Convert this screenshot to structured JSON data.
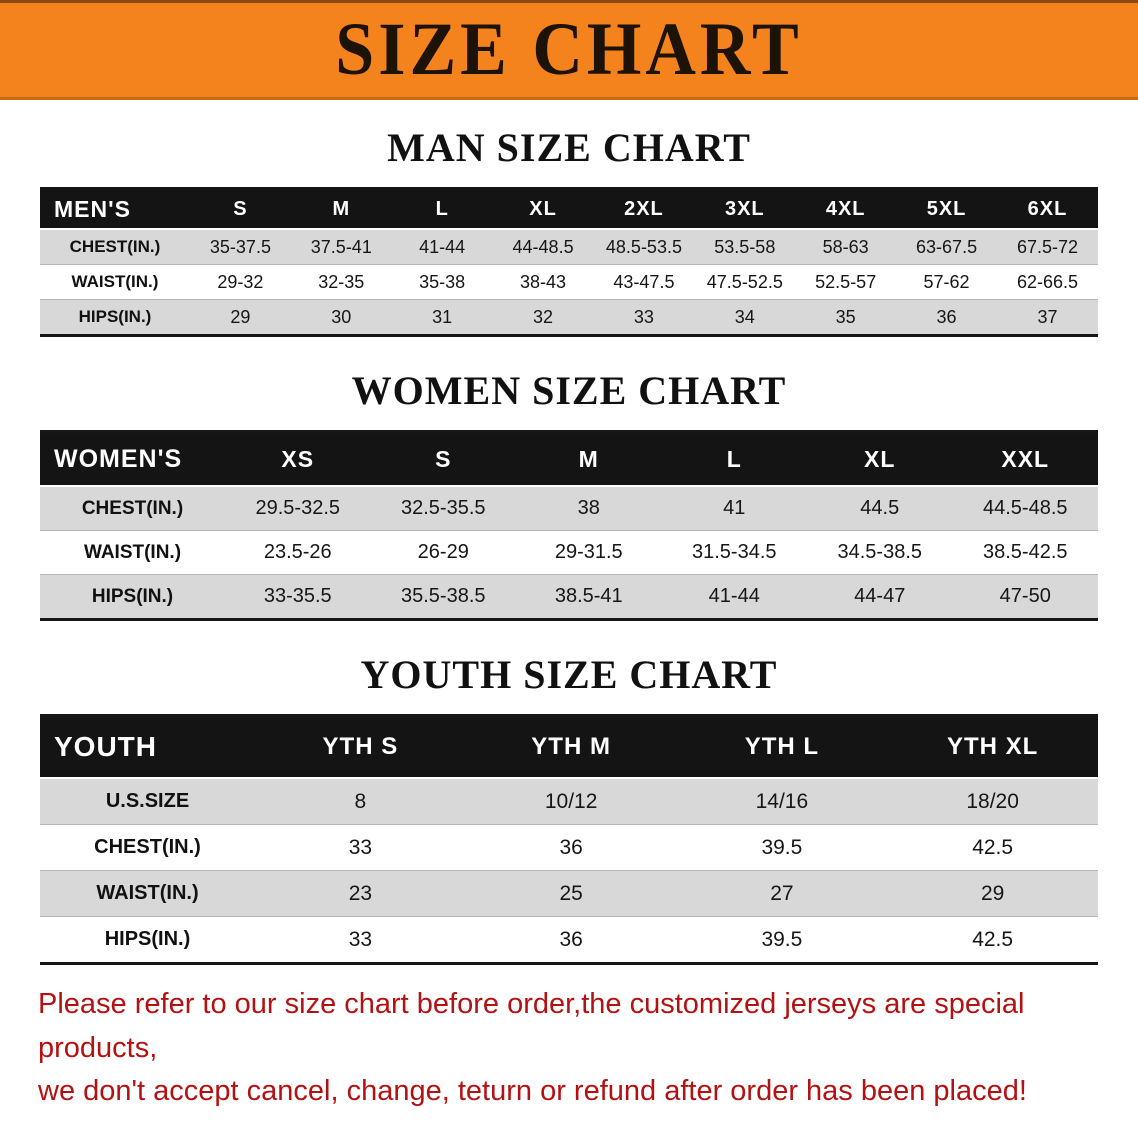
{
  "banner": {
    "title": "SIZE CHART",
    "bg_color": "#f5831d",
    "text_color": "#1c1206"
  },
  "sections": [
    {
      "id": "men",
      "heading": "MAN SIZE CHART",
      "table": {
        "corner": "MEN'S",
        "columns": [
          "S",
          "M",
          "L",
          "XL",
          "2XL",
          "3XL",
          "4XL",
          "5XL",
          "6XL"
        ],
        "rows": [
          {
            "label": "CHEST(IN.)",
            "values": [
              "35-37.5",
              "37.5-41",
              "41-44",
              "44-48.5",
              "48.5-53.5",
              "53.5-58",
              "58-63",
              "63-67.5",
              "67.5-72"
            ]
          },
          {
            "label": "WAIST(IN.)",
            "values": [
              "29-32",
              "32-35",
              "35-38",
              "38-43",
              "43-47.5",
              "47.5-52.5",
              "52.5-57",
              "57-62",
              "62-66.5"
            ]
          },
          {
            "label": "HIPS(IN.)",
            "values": [
              "29",
              "30",
              "31",
              "32",
              "33",
              "34",
              "35",
              "36",
              "37"
            ]
          }
        ]
      }
    },
    {
      "id": "women",
      "heading": "WOMEN SIZE CHART",
      "table": {
        "corner": "WOMEN'S",
        "columns": [
          "XS",
          "S",
          "M",
          "L",
          "XL",
          "XXL"
        ],
        "rows": [
          {
            "label": "CHEST(IN.)",
            "values": [
              "29.5-32.5",
              "32.5-35.5",
              "38",
              "41",
              "44.5",
              "44.5-48.5"
            ]
          },
          {
            "label": "WAIST(IN.)",
            "values": [
              "23.5-26",
              "26-29",
              "29-31.5",
              "31.5-34.5",
              "34.5-38.5",
              "38.5-42.5"
            ]
          },
          {
            "label": "HIPS(IN.)",
            "values": [
              "33-35.5",
              "35.5-38.5",
              "38.5-41",
              "41-44",
              "44-47",
              "47-50"
            ]
          }
        ]
      }
    },
    {
      "id": "youth",
      "heading": "YOUTH SIZE CHART",
      "table": {
        "corner": "YOUTH",
        "columns": [
          "YTH S",
          "YTH M",
          "YTH L",
          "YTH XL"
        ],
        "rows": [
          {
            "label": "U.S.SIZE",
            "values": [
              "8",
              "10/12",
              "14/16",
              "18/20"
            ]
          },
          {
            "label": "CHEST(IN.)",
            "values": [
              "33",
              "36",
              "39.5",
              "42.5"
            ]
          },
          {
            "label": "WAIST(IN.)",
            "values": [
              "23",
              "25",
              "27",
              "29"
            ]
          },
          {
            "label": "HIPS(IN.)",
            "values": [
              "33",
              "36",
              "39.5",
              "42.5"
            ]
          }
        ]
      }
    }
  ],
  "footer": {
    "line1": "Please refer to our size chart before order,the customized jerseys are special products,",
    "line2": "we don't accept cancel, change, teturn or refund after order has been placed!",
    "text_color": "#b41212"
  },
  "chart_data": [
    {
      "type": "table",
      "title": "MAN SIZE CHART",
      "columns": [
        "MEN'S",
        "S",
        "M",
        "L",
        "XL",
        "2XL",
        "3XL",
        "4XL",
        "5XL",
        "6XL"
      ],
      "rows": [
        [
          "CHEST(IN.)",
          "35-37.5",
          "37.5-41",
          "41-44",
          "44-48.5",
          "48.5-53.5",
          "53.5-58",
          "58-63",
          "63-67.5",
          "67.5-72"
        ],
        [
          "WAIST(IN.)",
          "29-32",
          "32-35",
          "35-38",
          "38-43",
          "43-47.5",
          "47.5-52.5",
          "52.5-57",
          "57-62",
          "62-66.5"
        ],
        [
          "HIPS(IN.)",
          "29",
          "30",
          "31",
          "32",
          "33",
          "34",
          "35",
          "36",
          "37"
        ]
      ]
    },
    {
      "type": "table",
      "title": "WOMEN SIZE CHART",
      "columns": [
        "WOMEN'S",
        "XS",
        "S",
        "M",
        "L",
        "XL",
        "XXL"
      ],
      "rows": [
        [
          "CHEST(IN.)",
          "29.5-32.5",
          "32.5-35.5",
          "38",
          "41",
          "44.5",
          "44.5-48.5"
        ],
        [
          "WAIST(IN.)",
          "23.5-26",
          "26-29",
          "29-31.5",
          "31.5-34.5",
          "34.5-38.5",
          "38.5-42.5"
        ],
        [
          "HIPS(IN.)",
          "33-35.5",
          "35.5-38.5",
          "38.5-41",
          "41-44",
          "44-47",
          "47-50"
        ]
      ]
    },
    {
      "type": "table",
      "title": "YOUTH SIZE CHART",
      "columns": [
        "YOUTH",
        "YTH S",
        "YTH M",
        "YTH L",
        "YTH XL"
      ],
      "rows": [
        [
          "U.S.SIZE",
          "8",
          "10/12",
          "14/16",
          "18/20"
        ],
        [
          "CHEST(IN.)",
          "33",
          "36",
          "39.5",
          "42.5"
        ],
        [
          "WAIST(IN.)",
          "23",
          "25",
          "27",
          "29"
        ],
        [
          "HIPS(IN.)",
          "33",
          "36",
          "39.5",
          "42.5"
        ]
      ]
    }
  ]
}
